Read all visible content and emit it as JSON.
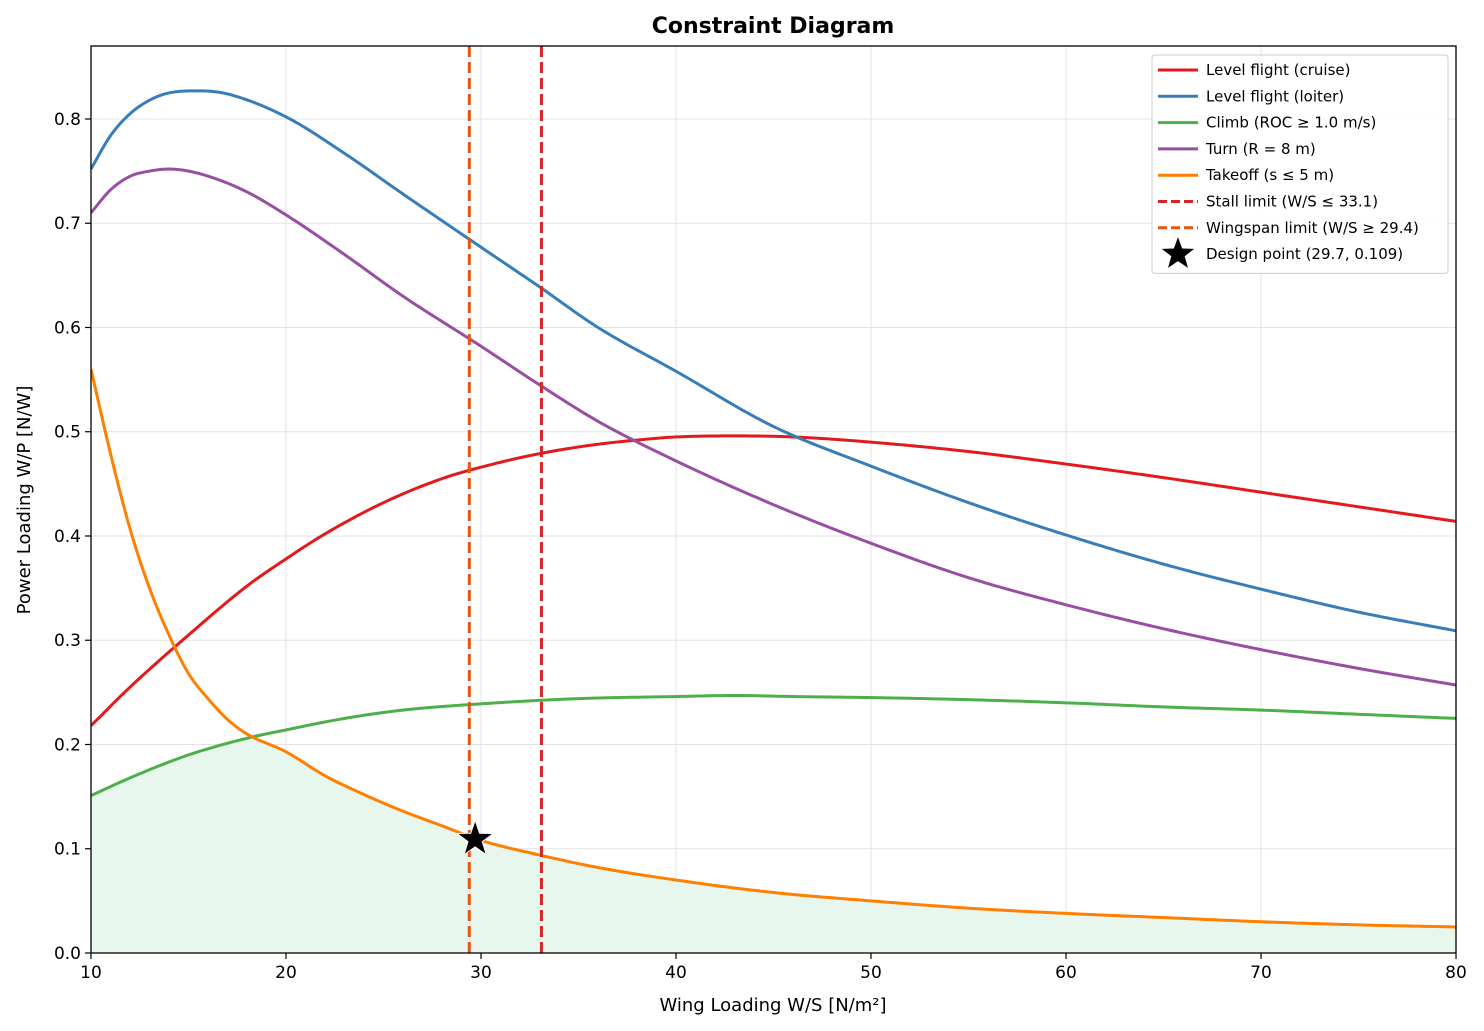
{
  "chart_data": {
    "type": "line",
    "title": "Constraint Diagram",
    "xlabel": "Wing Loading  W/S  [N/m²]",
    "ylabel": "Power Loading  W/P  [N/W]",
    "xlim": [
      10,
      80
    ],
    "ylim": [
      0,
      0.87
    ],
    "xticks": [
      10,
      20,
      30,
      40,
      50,
      60,
      70,
      80
    ],
    "yticks": [
      0.0,
      0.1,
      0.2,
      0.3,
      0.4,
      0.5,
      0.6,
      0.7,
      0.8
    ],
    "xtick_labels": [
      "10",
      "20",
      "30",
      "40",
      "50",
      "60",
      "70",
      "80"
    ],
    "ytick_labels": [
      "0.0",
      "0.1",
      "0.2",
      "0.3",
      "0.4",
      "0.5",
      "0.6",
      "0.7",
      "0.8"
    ],
    "grid": true,
    "legend_position": "top-right",
    "feasible_region_color": "#e8f7ee",
    "series": [
      {
        "name": "Level flight (cruise)",
        "color": "#e31a1c",
        "style": "solid",
        "x": [
          10,
          12,
          15,
          18,
          20,
          22,
          25,
          28,
          30,
          33,
          36,
          38,
          40,
          43,
          46,
          50,
          55,
          60,
          65,
          70,
          75,
          80
        ],
        "y": [
          0.218,
          0.255,
          0.305,
          0.352,
          0.378,
          0.402,
          0.432,
          0.455,
          0.466,
          0.479,
          0.488,
          0.492,
          0.495,
          0.496,
          0.495,
          0.49,
          0.481,
          0.469,
          0.456,
          0.442,
          0.428,
          0.414
        ]
      },
      {
        "name": "Level flight (loiter)",
        "color": "#377eb8",
        "style": "solid",
        "x": [
          10,
          11,
          12,
          13,
          14,
          15.5,
          17,
          20,
          23,
          26,
          30,
          33,
          36,
          40,
          45,
          50,
          55,
          60,
          65,
          70,
          75,
          80
        ],
        "y": [
          0.752,
          0.784,
          0.805,
          0.818,
          0.825,
          0.827,
          0.824,
          0.802,
          0.767,
          0.728,
          0.677,
          0.639,
          0.6,
          0.558,
          0.505,
          0.467,
          0.432,
          0.401,
          0.373,
          0.349,
          0.327,
          0.309
        ]
      },
      {
        "name": "Climb (ROC ≥ 1.0 m/s)",
        "color": "#4daf4a",
        "style": "solid",
        "x": [
          10,
          12,
          15,
          18,
          20,
          23,
          26,
          30,
          35,
          40,
          43,
          46,
          50,
          55,
          60,
          65,
          70,
          75,
          80
        ],
        "y": [
          0.151,
          0.168,
          0.19,
          0.206,
          0.214,
          0.225,
          0.233,
          0.239,
          0.244,
          0.246,
          0.247,
          0.246,
          0.245,
          0.243,
          0.24,
          0.236,
          0.233,
          0.229,
          0.225
        ]
      },
      {
        "name": "Turn (R = 8 m)",
        "color": "#984ea3",
        "style": "solid",
        "x": [
          10,
          11,
          12,
          13,
          14,
          15,
          16.5,
          18,
          20,
          23,
          26,
          30,
          33,
          36,
          40,
          45,
          50,
          55,
          60,
          65,
          70,
          75,
          80
        ],
        "y": [
          0.71,
          0.732,
          0.745,
          0.75,
          0.752,
          0.75,
          0.742,
          0.73,
          0.708,
          0.67,
          0.63,
          0.582,
          0.545,
          0.51,
          0.472,
          0.43,
          0.393,
          0.36,
          0.334,
          0.311,
          0.291,
          0.273,
          0.257
        ]
      },
      {
        "name": "Takeoff (s ≤ 5 m)",
        "color": "#ff7f00",
        "style": "solid",
        "x": [
          10,
          11,
          12,
          13,
          14,
          15,
          16,
          17,
          18,
          20,
          22,
          24,
          26,
          28,
          30,
          33,
          36,
          40,
          45,
          50,
          55,
          60,
          65,
          70,
          75,
          80
        ],
        "y": [
          0.56,
          0.479,
          0.407,
          0.35,
          0.305,
          0.268,
          0.244,
          0.224,
          0.21,
          0.193,
          0.17,
          0.152,
          0.136,
          0.122,
          0.108,
          0.094,
          0.082,
          0.07,
          0.058,
          0.05,
          0.043,
          0.038,
          0.034,
          0.03,
          0.027,
          0.025
        ]
      }
    ],
    "vertical_lines": [
      {
        "name": "Stall limit (W/S ≤ 33.1)",
        "x": 33.1,
        "color": "#d62728",
        "style": "dashed"
      },
      {
        "name": "Wingspan limit (W/S ≥ 29.4)",
        "x": 29.4,
        "color": "#e6550d",
        "style": "dashed"
      }
    ],
    "design_point": {
      "name": "Design point (29.7, 0.109)",
      "x": 29.7,
      "y": 0.109,
      "color": "#000000",
      "marker": "star"
    }
  }
}
